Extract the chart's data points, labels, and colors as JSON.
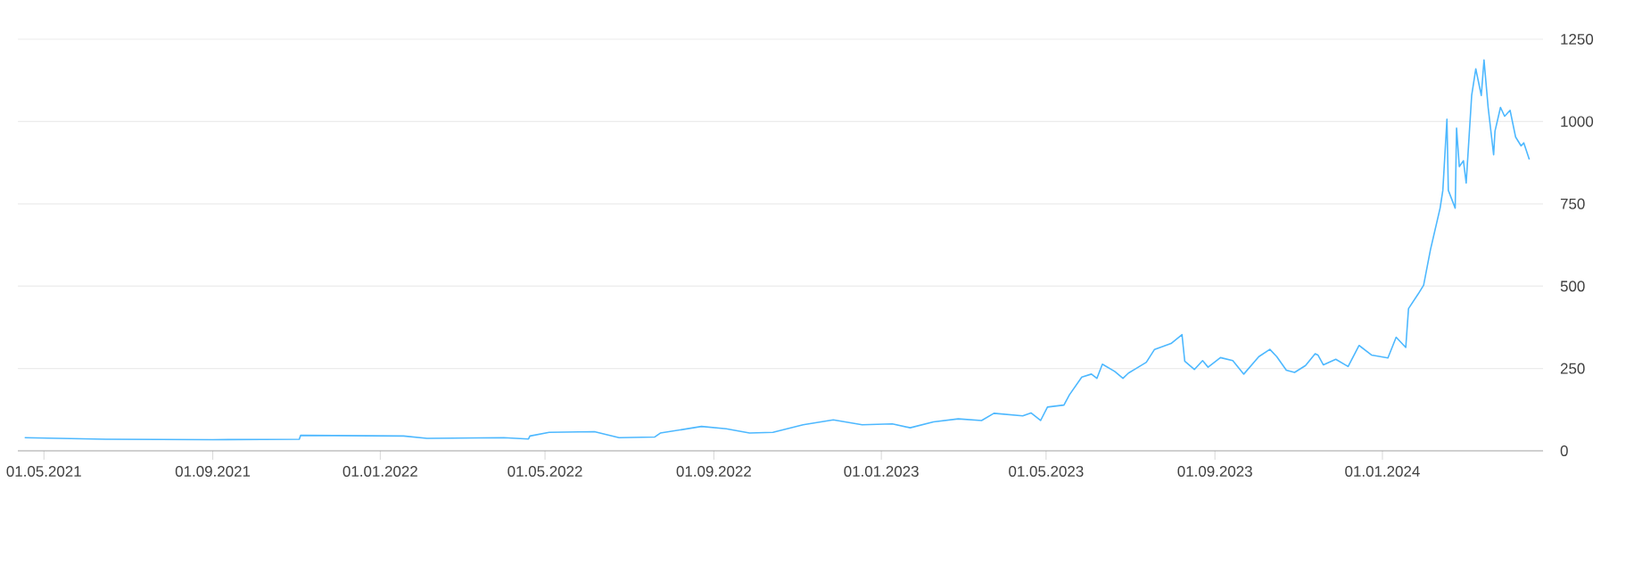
{
  "chart_data": {
    "type": "line",
    "color": "#4db8ff",
    "grid": "y",
    "marker": "none",
    "line_style": "solid",
    "x": [
      "2021-04-17",
      "2021-06-15",
      "2021-09-01",
      "2021-11-03",
      "2021-11-04",
      "2022-01-18",
      "2022-02-04",
      "2022-04-01",
      "2022-04-19",
      "2022-04-20",
      "2022-05-04",
      "2022-06-06",
      "2022-06-24",
      "2022-07-20",
      "2022-07-24",
      "2022-08-23",
      "2022-09-10",
      "2022-09-27",
      "2022-10-14",
      "2022-11-05",
      "2022-11-27",
      "2022-12-18",
      "2023-01-09",
      "2023-01-22",
      "2023-02-08",
      "2023-02-26",
      "2023-03-15",
      "2023-03-24",
      "2023-04-14",
      "2023-04-20",
      "2023-04-27",
      "2023-05-02",
      "2023-05-14",
      "2023-05-18",
      "2023-05-27",
      "2023-06-03",
      "2023-06-07",
      "2023-06-11",
      "2023-06-20",
      "2023-06-26",
      "2023-06-30",
      "2023-07-13",
      "2023-07-19",
      "2023-07-31",
      "2023-08-08",
      "2023-08-10",
      "2023-08-17",
      "2023-08-23",
      "2023-08-27",
      "2023-09-05",
      "2023-09-14",
      "2023-09-22",
      "2023-10-03",
      "2023-10-11",
      "2023-10-16",
      "2023-10-23",
      "2023-10-29",
      "2023-11-06",
      "2023-11-13",
      "2023-11-15",
      "2023-11-19",
      "2023-11-28",
      "2023-12-07",
      "2023-12-15",
      "2023-12-24",
      "2024-01-05",
      "2024-01-11",
      "2024-01-18",
      "2024-01-20",
      "2024-01-27",
      "2024-01-31",
      "2024-02-05",
      "2024-02-09",
      "2024-02-12",
      "2024-02-14",
      "2024-02-17",
      "2024-02-18",
      "2024-02-23",
      "2024-02-24",
      "2024-02-26",
      "2024-02-29",
      "2024-03-02",
      "2024-03-06",
      "2024-03-09",
      "2024-03-13",
      "2024-03-15",
      "2024-03-18",
      "2024-03-22",
      "2024-03-23",
      "2024-03-27",
      "2024-03-30",
      "2024-04-03",
      "2024-04-07",
      "2024-04-11",
      "2024-04-13",
      "2024-04-17"
    ],
    "values": [
      40,
      35,
      34,
      35,
      47,
      45,
      38,
      40,
      36,
      45,
      56,
      58,
      40,
      42,
      54,
      74,
      67,
      54,
      56,
      79,
      94,
      79,
      82,
      70,
      88,
      97,
      92,
      114,
      106,
      115,
      92,
      133,
      139,
      170,
      224,
      233,
      220,
      263,
      241,
      220,
      236,
      269,
      308,
      326,
      353,
      272,
      247,
      274,
      254,
      283,
      274,
      233,
      286,
      308,
      286,
      245,
      238,
      259,
      295,
      291,
      261,
      278,
      256,
      320,
      291,
      282,
      345,
      314,
      432,
      476,
      503,
      611,
      683,
      737,
      791,
      1007,
      791,
      737,
      980,
      863,
      881,
      813,
      1079,
      1160,
      1079,
      1187,
      1043,
      899,
      971,
      1043,
      1016,
      1034,
      953,
      926,
      935,
      885
    ],
    "xlim": [
      "2021-04-12",
      "2024-04-27"
    ],
    "xticks": [
      {
        "value": "2021-05-01",
        "label": "01.05.2021"
      },
      {
        "value": "2021-09-01",
        "label": "01.09.2021"
      },
      {
        "value": "2022-01-01",
        "label": "01.01.2022"
      },
      {
        "value": "2022-05-01",
        "label": "01.05.2022"
      },
      {
        "value": "2022-09-01",
        "label": "01.09.2022"
      },
      {
        "value": "2023-01-01",
        "label": "01.01.2023"
      },
      {
        "value": "2023-05-01",
        "label": "01.05.2023"
      },
      {
        "value": "2023-09-01",
        "label": "01.09.2023"
      },
      {
        "value": "2024-01-01",
        "label": "01.01.2024"
      }
    ],
    "ylim": [
      0,
      1250
    ],
    "yticks": [
      0,
      250,
      500,
      750,
      1000,
      1250
    ]
  }
}
